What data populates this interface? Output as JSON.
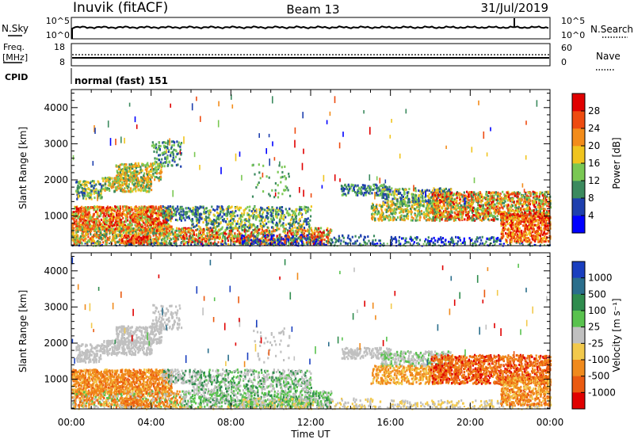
{
  "header": {
    "station": "Inuvik (fitACF)",
    "beam": "Beam 13",
    "date": "31/Jul/2019"
  },
  "sky_panel": {
    "left_label": "N.Sky",
    "left_ticks": [
      "10^5",
      "10^0"
    ],
    "right_ticks": [
      "10^5",
      "10^0"
    ],
    "right_label": "N.Search"
  },
  "freq_panel": {
    "left_label_line1": "Freq.",
    "left_label_line2": "[MHz]",
    "left_ticks": [
      "18",
      "8"
    ],
    "right_ticks": [
      "60",
      "0"
    ],
    "right_label": "Nave"
  },
  "cpid": {
    "label": "CPID",
    "value": "normal (fast) 151"
  },
  "x_axis": {
    "label": "Time UT",
    "ticks": [
      "00:00",
      "04:00",
      "08:00",
      "12:00",
      "16:00",
      "20:00",
      "00:00"
    ]
  },
  "chart_data": [
    {
      "type": "heatmap",
      "name": "power",
      "ylabel": "Slant Range [km]",
      "yticks": [
        "1000",
        "2000",
        "3000",
        "4000"
      ],
      "ylim": [
        180,
        4500
      ],
      "xlim": [
        0,
        24
      ],
      "colorbar": {
        "label": "Power [dB]",
        "ticks": [
          "4",
          "8",
          "12",
          "16",
          "20",
          "24",
          "28"
        ],
        "colors": [
          "#0000ff",
          "#1e3fae",
          "#3b8a5e",
          "#7ac853",
          "#f0c41e",
          "#f38c1a",
          "#ee4b10",
          "#e00000"
        ]
      }
    },
    {
      "type": "heatmap",
      "name": "velocity",
      "ylabel": "Slant Range [km]",
      "yticks": [
        "1000",
        "2000",
        "3000",
        "4000"
      ],
      "ylim": [
        180,
        4500
      ],
      "xlim": [
        0,
        24
      ],
      "colorbar": {
        "label": "Velocity [m s⁻¹]",
        "ticks": [
          "1000",
          "500",
          "100",
          "25",
          "-25",
          "-100",
          "-500",
          "-1000"
        ],
        "colors": [
          "#1a3fbf",
          "#2a6e8c",
          "#2f8c4e",
          "#59c24e",
          "#c0c0c0",
          "#f2c94c",
          "#f08a1c",
          "#ea5a10",
          "#e00000"
        ]
      }
    }
  ]
}
